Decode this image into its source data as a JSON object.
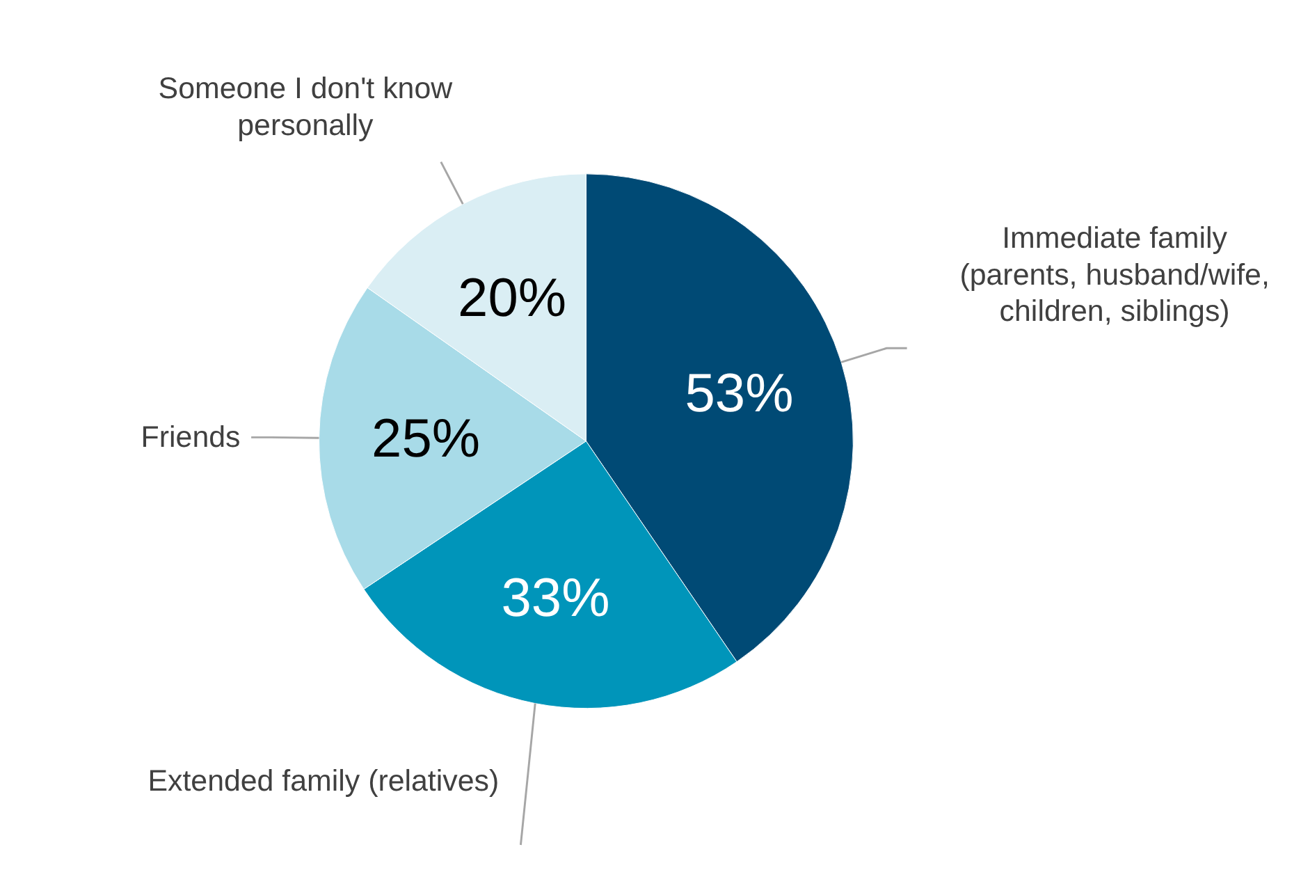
{
  "chart_data": {
    "type": "pie",
    "categories": [
      "Immediate family (parents, husband/wife, children, siblings)",
      "Extended family (relatives)",
      "Friends",
      "Someone I don't know personally"
    ],
    "values": [
      53,
      33,
      25,
      20
    ],
    "colors": [
      "#004a75",
      "#0095ba",
      "#a8dbe8",
      "#daeef4"
    ],
    "value_labels": [
      "53%",
      "33%",
      "25%",
      "20%"
    ]
  }
}
